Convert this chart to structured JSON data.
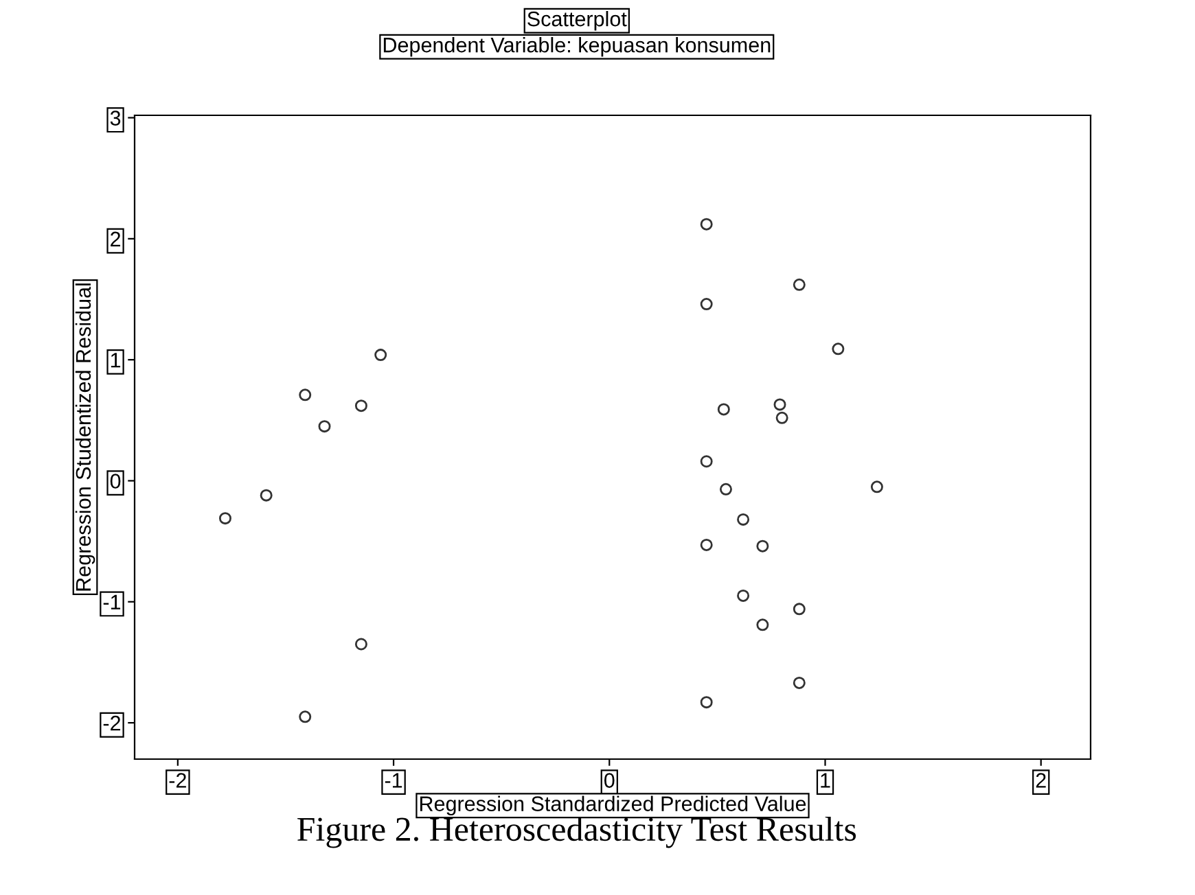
{
  "chart_data": {
    "type": "scatter",
    "title": "Scatterplot",
    "subtitle": "Dependent Variable: kepuasan konsumen",
    "xlabel": "Regression Standardized Predicted Value",
    "ylabel": "Regression Studentized Residual",
    "annotations": [
      "Figure 2. Heteroscedasticity Test Results"
    ],
    "x": [
      -1.78,
      -1.59,
      -1.41,
      -1.32,
      -1.15,
      -1.06,
      -1.15,
      -1.41,
      0.45,
      0.45,
      0.88,
      1.06,
      0.53,
      0.79,
      0.8,
      0.45,
      0.54,
      1.24,
      0.62,
      0.45,
      0.71,
      0.62,
      0.88,
      0.71,
      0.88,
      0.45
    ],
    "values": [
      -0.31,
      -0.12,
      0.71,
      0.45,
      0.62,
      1.04,
      -1.35,
      -1.95,
      2.12,
      1.46,
      1.62,
      1.09,
      0.59,
      0.63,
      0.52,
      0.16,
      -0.07,
      -0.05,
      -0.32,
      -0.53,
      -0.54,
      -0.95,
      -1.06,
      -1.19,
      -1.67,
      -1.83
    ],
    "color": "#333333",
    "marker": "circle",
    "xlim": [
      -2.2,
      2.23
    ],
    "ylim": [
      -2.3,
      3.02
    ],
    "xticks": [
      -2,
      -1,
      0,
      1,
      2
    ],
    "yticks": [
      -2,
      -1,
      0,
      1,
      2,
      3
    ],
    "grid": false
  }
}
